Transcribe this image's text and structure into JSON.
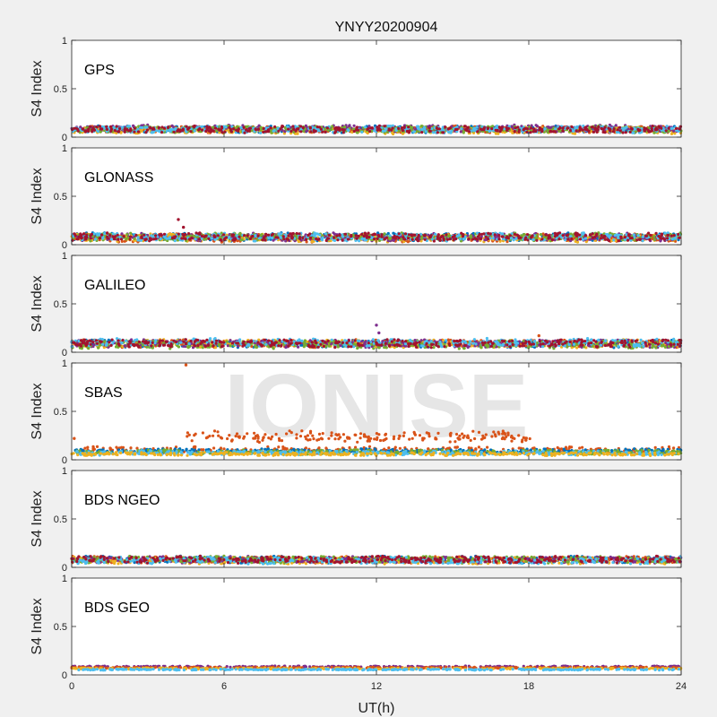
{
  "figure": {
    "title": "YNYY20200904",
    "xlabel": "UT(h)",
    "watermark": "IONISE",
    "background": "#f0f0f0",
    "axes_face": "#ffffff"
  },
  "chart_data": [
    {
      "type": "scatter",
      "panel_label": "GPS",
      "ylabel": "S4 Index",
      "xlim": [
        0,
        24
      ],
      "ylim": [
        0,
        1
      ],
      "xticks": [
        "0",
        "6",
        "12",
        "18",
        "24"
      ],
      "yticks": [
        "0",
        "0.5",
        "1"
      ],
      "series": [
        {
          "color": "#0072bd",
          "base": 0.08,
          "spread": 0.03,
          "x_range": [
            0,
            24
          ]
        },
        {
          "color": "#d95319",
          "base": 0.08,
          "spread": 0.03,
          "x_range": [
            0,
            24
          ]
        },
        {
          "color": "#edb120",
          "base": 0.07,
          "spread": 0.03,
          "x_range": [
            0,
            24
          ]
        },
        {
          "color": "#7e2f8e",
          "base": 0.09,
          "spread": 0.03,
          "x_range": [
            0,
            24
          ]
        },
        {
          "color": "#77ac30",
          "base": 0.08,
          "spread": 0.03,
          "x_range": [
            0,
            24
          ]
        },
        {
          "color": "#4dbeee",
          "base": 0.08,
          "spread": 0.03,
          "x_range": [
            0,
            24
          ]
        },
        {
          "color": "#a2142f",
          "base": 0.08,
          "spread": 0.03,
          "x_range": [
            0,
            24
          ]
        }
      ]
    },
    {
      "type": "scatter",
      "panel_label": "GLONASS",
      "ylabel": "S4 Index",
      "xlim": [
        0,
        24
      ],
      "ylim": [
        0,
        1
      ],
      "xticks": [
        "0",
        "6",
        "12",
        "18",
        "24"
      ],
      "yticks": [
        "0",
        "0.5",
        "1"
      ],
      "series": [
        {
          "color": "#0072bd",
          "base": 0.08,
          "spread": 0.035,
          "x_range": [
            0,
            24
          ]
        },
        {
          "color": "#d95319",
          "base": 0.07,
          "spread": 0.035,
          "x_range": [
            0,
            24
          ]
        },
        {
          "color": "#edb120",
          "base": 0.07,
          "spread": 0.035,
          "x_range": [
            0,
            24
          ]
        },
        {
          "color": "#7e2f8e",
          "base": 0.08,
          "spread": 0.035,
          "x_range": [
            0,
            24
          ]
        },
        {
          "color": "#77ac30",
          "base": 0.08,
          "spread": 0.035,
          "x_range": [
            0,
            24
          ]
        },
        {
          "color": "#4dbeee",
          "base": 0.08,
          "spread": 0.035,
          "x_range": [
            0,
            24
          ]
        },
        {
          "color": "#a2142f",
          "base": 0.08,
          "spread": 0.035,
          "x_range": [
            0,
            24
          ]
        }
      ],
      "spikes": [
        {
          "x": 4.2,
          "y": 0.26,
          "color": "#a2142f"
        },
        {
          "x": 4.4,
          "y": 0.18,
          "color": "#a2142f"
        }
      ]
    },
    {
      "type": "scatter",
      "panel_label": "GALILEO",
      "ylabel": "S4 Index",
      "xlim": [
        0,
        24
      ],
      "ylim": [
        0,
        1
      ],
      "xticks": [
        "0",
        "6",
        "12",
        "18",
        "24"
      ],
      "yticks": [
        "0",
        "0.5",
        "1"
      ],
      "series": [
        {
          "color": "#0072bd",
          "base": 0.09,
          "spread": 0.035,
          "x_range": [
            0,
            24
          ]
        },
        {
          "color": "#d95319",
          "base": 0.09,
          "spread": 0.035,
          "x_range": [
            0,
            24
          ]
        },
        {
          "color": "#edb120",
          "base": 0.09,
          "spread": 0.035,
          "x_range": [
            0,
            24
          ]
        },
        {
          "color": "#7e2f8e",
          "base": 0.09,
          "spread": 0.035,
          "x_range": [
            0,
            24
          ]
        },
        {
          "color": "#77ac30",
          "base": 0.08,
          "spread": 0.035,
          "x_range": [
            0,
            24
          ]
        },
        {
          "color": "#4dbeee",
          "base": 0.1,
          "spread": 0.035,
          "x_range": [
            0,
            24
          ]
        },
        {
          "color": "#a2142f",
          "base": 0.09,
          "spread": 0.035,
          "x_range": [
            0,
            24
          ]
        }
      ],
      "spikes": [
        {
          "x": 12.0,
          "y": 0.28,
          "color": "#7e2f8e"
        },
        {
          "x": 12.1,
          "y": 0.2,
          "color": "#7e2f8e"
        },
        {
          "x": 18.4,
          "y": 0.17,
          "color": "#d95319"
        }
      ]
    },
    {
      "type": "scatter",
      "panel_label": "SBAS",
      "ylabel": "S4 Index",
      "xlim": [
        0,
        24
      ],
      "ylim": [
        0,
        1
      ],
      "xticks": [
        "0",
        "6",
        "12",
        "18",
        "24"
      ],
      "yticks": [
        "0",
        "0.5",
        "1"
      ],
      "series": [
        {
          "color": "#d95319",
          "base": 0.1,
          "spread": 0.03,
          "x_range": [
            0,
            24
          ]
        },
        {
          "color": "#0072bd",
          "base": 0.09,
          "spread": 0.02,
          "x_range": [
            0,
            24
          ]
        },
        {
          "color": "#77ac30",
          "base": 0.08,
          "spread": 0.02,
          "x_range": [
            0,
            24
          ]
        },
        {
          "color": "#4dbeee",
          "base": 0.07,
          "spread": 0.02,
          "x_range": [
            0,
            24
          ]
        },
        {
          "color": "#edb120",
          "base": 0.06,
          "spread": 0.015,
          "x_range": [
            0,
            24
          ]
        },
        {
          "color": "#d95319",
          "base": 0.24,
          "spread": 0.05,
          "x_range": [
            4.5,
            18.2
          ]
        }
      ],
      "spikes": [
        {
          "x": 4.5,
          "y": 0.98,
          "color": "#d95319"
        },
        {
          "x": 0.1,
          "y": 0.22,
          "color": "#d95319"
        }
      ]
    },
    {
      "type": "scatter",
      "panel_label": "BDS NGEO",
      "ylabel": "S4 Index",
      "xlim": [
        0,
        24
      ],
      "ylim": [
        0,
        1
      ],
      "xticks": [
        "0",
        "6",
        "12",
        "18",
        "24"
      ],
      "yticks": [
        "0",
        "0.5",
        "1"
      ],
      "series": [
        {
          "color": "#0072bd",
          "base": 0.08,
          "spread": 0.03,
          "x_range": [
            0,
            24
          ]
        },
        {
          "color": "#d95319",
          "base": 0.08,
          "spread": 0.03,
          "x_range": [
            0,
            24
          ]
        },
        {
          "color": "#edb120",
          "base": 0.07,
          "spread": 0.03,
          "x_range": [
            0,
            24
          ]
        },
        {
          "color": "#7e2f8e",
          "base": 0.08,
          "spread": 0.03,
          "x_range": [
            0,
            24
          ]
        },
        {
          "color": "#77ac30",
          "base": 0.08,
          "spread": 0.03,
          "x_range": [
            0,
            24
          ]
        },
        {
          "color": "#4dbeee",
          "base": 0.07,
          "spread": 0.03,
          "x_range": [
            0,
            24
          ]
        },
        {
          "color": "#a2142f",
          "base": 0.08,
          "spread": 0.03,
          "x_range": [
            0,
            24
          ]
        }
      ]
    },
    {
      "type": "scatter",
      "panel_label": "BDS GEO",
      "ylabel": "S4 Index",
      "xlim": [
        0,
        24
      ],
      "ylim": [
        0,
        1
      ],
      "xticks": [
        "0",
        "6",
        "12",
        "18",
        "24"
      ],
      "yticks": [
        "0",
        "0.5",
        "1"
      ],
      "series": [
        {
          "color": "#7e2f8e",
          "base": 0.085,
          "spread": 0.006,
          "x_range": [
            0,
            24
          ]
        },
        {
          "color": "#d95319",
          "base": 0.075,
          "spread": 0.006,
          "x_range": [
            0,
            24
          ]
        },
        {
          "color": "#edb120",
          "base": 0.065,
          "spread": 0.006,
          "x_range": [
            0,
            24
          ]
        },
        {
          "color": "#4dbeee",
          "base": 0.055,
          "spread": 0.005,
          "x_range": [
            0,
            24
          ]
        }
      ]
    }
  ]
}
